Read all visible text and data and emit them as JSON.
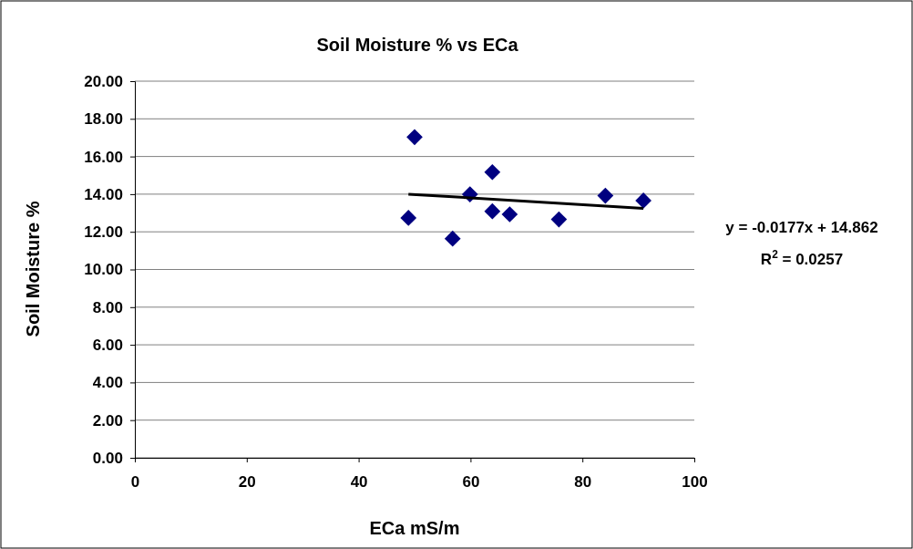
{
  "chart_data": {
    "type": "scatter",
    "title": "Soil Moisture % vs ECa",
    "xlabel": "ECa mS/m",
    "ylabel": "Soil Moisture %",
    "series": [
      {
        "color": "#000080",
        "marker": "diamond",
        "x": [
          48.9,
          50.0,
          56.8,
          59.9,
          63.9,
          63.9,
          67.0,
          75.8,
          84.1,
          90.9
        ],
        "values": [
          12.74,
          17.03,
          11.64,
          13.99,
          15.17,
          13.09,
          12.93,
          12.66,
          13.92,
          13.66
        ]
      },
      {
        "type": "line",
        "color": "#000000",
        "marker": "none",
        "x": [
          48.9,
          90.9
        ],
        "values": [
          14.0,
          13.25
        ]
      }
    ],
    "annotations": [
      "y = -0.0177x + 14.862",
      "R$^{2}$ = 0.0257"
    ],
    "xlim": [
      0,
      100
    ],
    "xticks": [
      0,
      20,
      40,
      60,
      80,
      100
    ],
    "ylim": [
      0,
      20
    ],
    "yticks": [
      {
        "value": 0,
        "label": "0.00"
      },
      {
        "value": 2,
        "label": "2.00"
      },
      {
        "value": 4,
        "label": "4.00"
      },
      {
        "value": 6,
        "label": "6.00"
      },
      {
        "value": 8,
        "label": "8.00"
      },
      {
        "value": 10,
        "label": "10.00"
      },
      {
        "value": 12,
        "label": "12.00"
      },
      {
        "value": 14,
        "label": "14.00"
      },
      {
        "value": 16,
        "label": "16.00"
      },
      {
        "value": 18,
        "label": "18.00"
      },
      {
        "value": 20,
        "label": "20.00"
      }
    ],
    "grid": "y"
  }
}
